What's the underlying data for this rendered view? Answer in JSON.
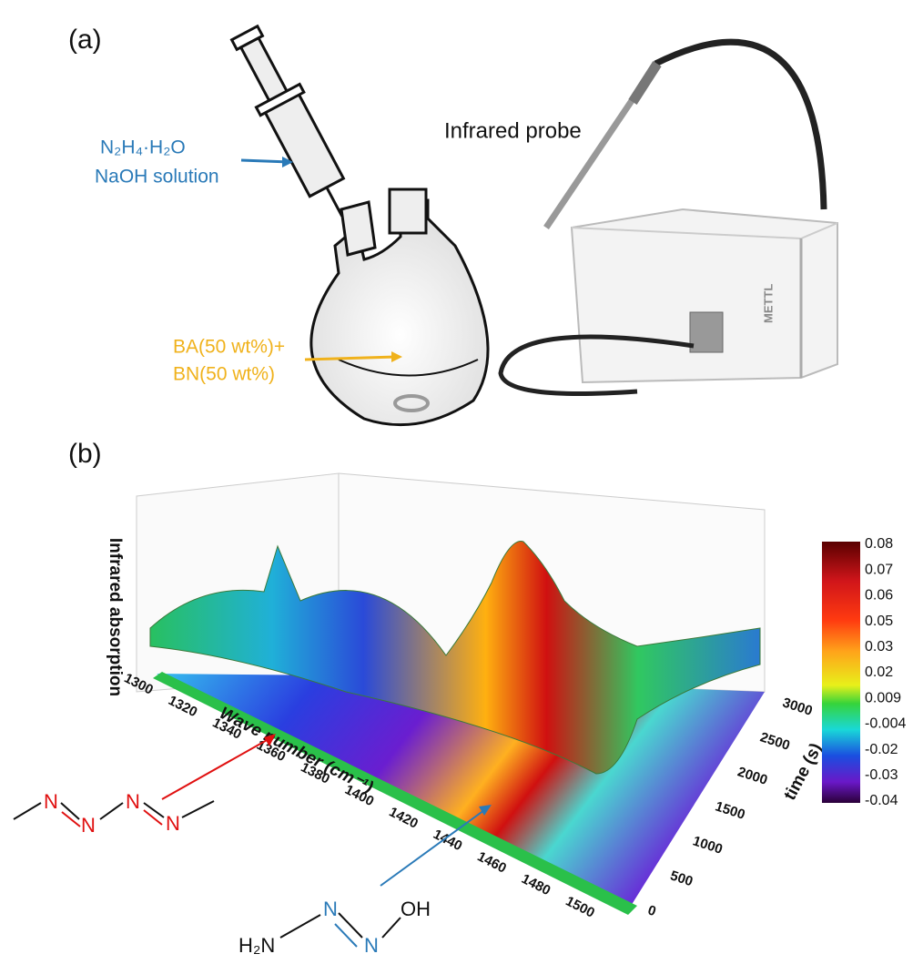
{
  "panel_a": {
    "label": "(a)",
    "reagent_lines": [
      "N₂H₄·H₂O",
      "NaOH solution"
    ],
    "flask_contents": [
      "BA(50 wt%)+",
      "BN(50 wt%)"
    ],
    "probe": "Infrared probe",
    "instrument_brand": "METTL"
  },
  "panel_b": {
    "label": "(b)",
    "z_axis_label": "Infrared absorption",
    "x_axis_label": "Wave number (cm⁻¹)",
    "y_axis_label": "time (s)",
    "x_ticks": [
      1300,
      1320,
      1340,
      1360,
      1380,
      1400,
      1420,
      1440,
      1460,
      1480,
      1500
    ],
    "y_ticks": [
      0,
      500,
      1000,
      1500,
      2000,
      2500,
      3000
    ],
    "colorbar_ticks": [
      0.08,
      0.07,
      0.06,
      0.05,
      0.03,
      0.02,
      0.009,
      -0.004,
      -0.02,
      -0.03,
      -0.04
    ]
  },
  "structures": {
    "azo": [
      "N",
      "N",
      "N",
      "N"
    ],
    "triazene": [
      "H₂N",
      "N",
      "N",
      "OH"
    ]
  }
}
